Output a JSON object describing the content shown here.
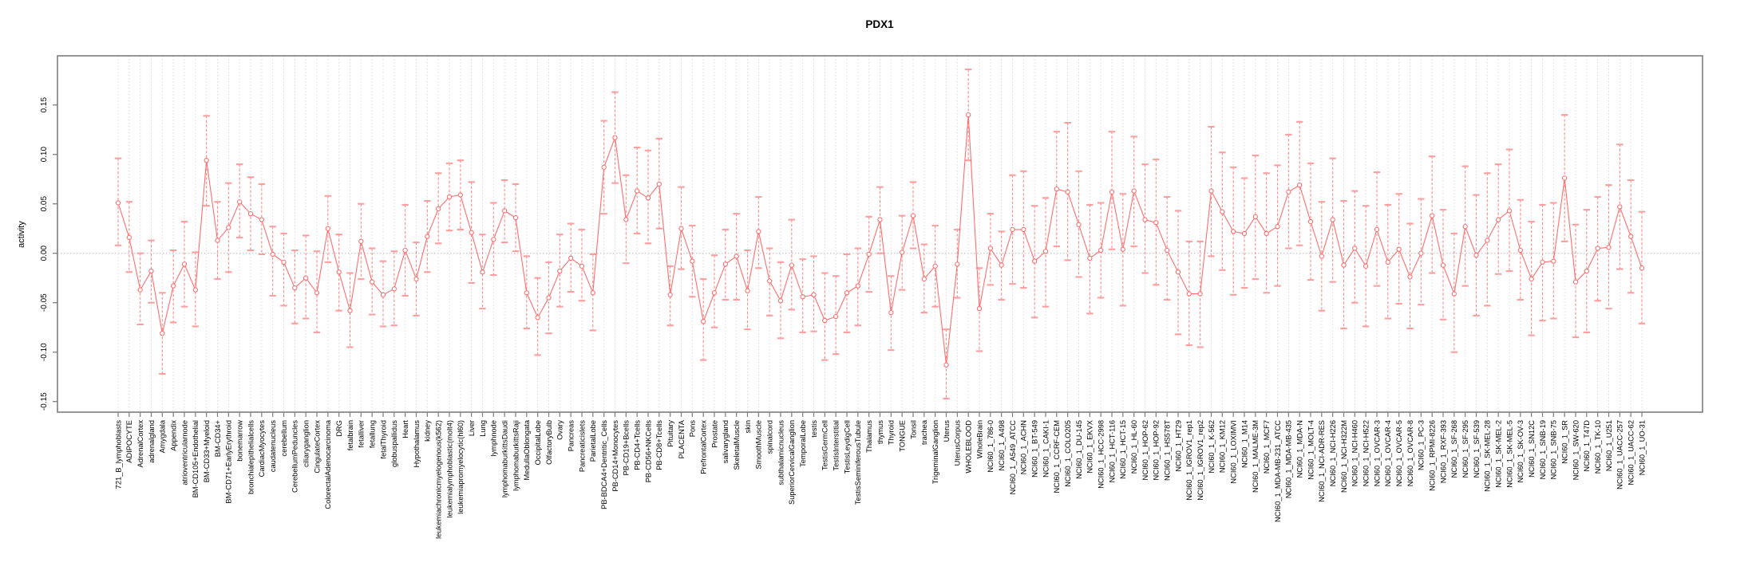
{
  "title": "PDX1",
  "ylabel": "activity",
  "chart_data": {
    "type": "line",
    "title": "PDX1",
    "xlabel": "",
    "ylabel": "activity",
    "ylim": [
      -0.16,
      0.2
    ],
    "yticks": [
      "-0.15",
      "-0.10",
      "-0.05",
      "0.00",
      "0.05",
      "0.10",
      "0.15"
    ],
    "ytick_values": [
      -0.15,
      -0.1,
      -0.05,
      0.0,
      0.05,
      0.1,
      0.15
    ],
    "grid": "vertical-dotted-per-category",
    "zero_line": true,
    "legend_position": "none",
    "point_style": "open-circle-with-error-bars",
    "categories": [
      "721_B_lymphoblasts",
      "ADIPOCYTE",
      "AdrenalCortex",
      "adrenalgland",
      "Amygdala",
      "Appendix",
      "atrioventricularnode",
      "BM-CD105+Endothelial",
      "BM-CD33+Myeloid",
      "BM-CD34+",
      "BM-CD71+EarlyErythroid",
      "bonemarrow",
      "bronchialepithelialcells",
      "CardiacMyocytes",
      "caudatenucleus",
      "cerebellum",
      "CerebellumPeduncles",
      "ciliaryganglion",
      "CingulateCortex",
      "ColorectalAdenocarcinoma",
      "DRG",
      "fetalbrain",
      "fetalliver",
      "fetallung",
      "fetalThyroid",
      "globuspallidus",
      "Heart",
      "Hypothalamus",
      "kidney",
      "leukemiachronicmyelogenous(k562)",
      "leukemialymphoblastic(molt4)",
      "leukemiapromyelocytic(hl60)",
      "Liver",
      "Lung",
      "lymphnode",
      "lymphomaburkittsDaudi",
      "lymphomaburkittsRaji",
      "MedullaOblongata",
      "OccipitalLobe",
      "OlfactoryBulb",
      "Ovary",
      "Pancreas",
      "Pancreaticislets",
      "ParietalLobe",
      "PB-BDCA4+Dentritic_Cells",
      "PB-CD14+Monocytes",
      "PB-CD19+Bcells",
      "PB-CD4+Tcells",
      "PB-CD56+NKCells",
      "PB-CD8+Tcells",
      "Pituitary",
      "PLACENTA",
      "Pons",
      "PrefrontalCortex",
      "Prostate",
      "salivarygland",
      "SkeletalMuscle",
      "skin",
      "SmoothMuscle",
      "spinalcord",
      "subthalamicnucleus",
      "SuperiorCervicalGanglion",
      "TemporalLobe",
      "testis",
      "TestisGermCell",
      "TestisInterstitial",
      "TestisLeydigCell",
      "TestisSeminiferousTubule",
      "Thalamus",
      "thymus",
      "Thyroid",
      "TONGUE",
      "Tonsil",
      "trachea",
      "TrigeminalGanglion",
      "Uterus",
      "UterusCorpus",
      "WHOLEBLOOD",
      "WholeBrain",
      "NCI60_1_786-0",
      "NCI60_1_A498",
      "NCI60_1_A549_ATCC",
      "NCI60_1_ACHN",
      "NCI60_1_BT-549",
      "NCI60_1_CAKI-1",
      "NCI60_1_CCRF-CEM",
      "NCI60_1_COLO205",
      "NCI60_1_DU-145",
      "NCI60_1_EKVX",
      "NCI60_1_HCC-2998",
      "NCI60_1_HCT-116",
      "NCI60_1_HCT-15",
      "NCI60_1_HL-60",
      "NCI60_1_HOP-62",
      "NCI60_1_HOP-92",
      "NCI60_1_HS578T",
      "NCI60_1_HT29",
      "NCI60_1_IGROV1_rep1",
      "NCI60_1_IGROV1_rep2",
      "NCI60_1_K-562",
      "NCI60_1_KM12",
      "NCI60_1_LOXIMVI",
      "NCI60_1_M14",
      "NCI60_1_MALME-3M",
      "NCI60_1_MCF7",
      "NCI60_1_MDA-MB-231_ATCC",
      "NCI60_1_MDA-MB-435",
      "NCI60_1_MDA-N",
      "NCI60_1_MOLT-4",
      "NCI60_1_NCI-ADR-RES",
      "NCI60_1_NCI-H226",
      "NCI60_1_NCI-H322M",
      "NCI60_1_NCI-H460",
      "NCI60_1_NCI-H522",
      "NCI60_1_OVCAR-3",
      "NCI60_1_OVCAR-4",
      "NCI60_1_OVCAR-5",
      "NCI60_1_OVCAR-8",
      "NCI60_1_PC-3",
      "NCI60_1_RPMI-8226",
      "NCI60_1_RXF-393",
      "NCI60_1_SF-268",
      "NCI60_1_SF-295",
      "NCI60_1_SF-539",
      "NCI60_1_SK-MEL-28",
      "NCI60_1_SK-MEL-2",
      "NCI60_1_SK-MEL-5",
      "NCI60_1_SK-OV-3",
      "NCI60_1_SN12C",
      "NCI60_1_SNB-19",
      "NCI60_1_SNB-75",
      "NCI60_1_SR",
      "NCI60_1_SW-620",
      "NCI60_1_T47D",
      "NCI60_1_TK-10",
      "NCI60_1_U251",
      "NCI60_1_UACC-257",
      "NCI60_1_UACC-62",
      "NCI60_1_UO-31"
    ],
    "series": [
      {
        "name": "activity",
        "values": [
          0.051,
          0.016,
          -0.037,
          -0.018,
          -0.081,
          -0.033,
          -0.011,
          -0.037,
          0.094,
          0.013,
          0.026,
          0.052,
          0.04,
          0.034,
          -0.001,
          -0.009,
          -0.035,
          -0.025,
          -0.04,
          0.025,
          -0.019,
          -0.058,
          0.012,
          -0.029,
          -0.042,
          -0.036,
          0.003,
          -0.026,
          0.017,
          0.045,
          0.057,
          0.059,
          0.021,
          -0.019,
          0.014,
          0.043,
          0.036,
          -0.04,
          -0.065,
          -0.045,
          -0.018,
          -0.005,
          -0.013,
          -0.04,
          0.087,
          0.117,
          0.034,
          0.063,
          0.056,
          0.07,
          -0.042,
          0.025,
          -0.008,
          -0.069,
          -0.04,
          -0.011,
          -0.003,
          -0.038,
          0.022,
          -0.028,
          -0.048,
          -0.012,
          -0.044,
          -0.042,
          -0.068,
          -0.064,
          -0.04,
          -0.033,
          -0.001,
          0.034,
          -0.06,
          0.001,
          0.038,
          -0.026,
          -0.013,
          -0.113,
          -0.011,
          0.14,
          -0.056,
          0.005,
          -0.012,
          0.024,
          0.024,
          -0.008,
          0.002,
          0.065,
          0.062,
          0.029,
          -0.005,
          0.003,
          0.062,
          0.004,
          0.063,
          0.034,
          0.031,
          0.003,
          -0.019,
          -0.041,
          -0.041,
          0.063,
          0.042,
          0.022,
          0.02,
          0.037,
          0.02,
          0.027,
          0.062,
          0.069,
          0.032,
          -0.003,
          0.034,
          -0.012,
          0.005,
          -0.013,
          0.024,
          -0.009,
          0.004,
          -0.024,
          0.0,
          0.038,
          -0.012,
          -0.041,
          0.027,
          -0.002,
          0.013,
          0.034,
          0.043,
          0.003,
          -0.026,
          -0.009,
          -0.008,
          0.076,
          -0.029,
          -0.018,
          0.005,
          0.006,
          0.047,
          0.017,
          -0.015
        ],
        "lower": [
          0.008,
          -0.019,
          -0.072,
          -0.05,
          -0.122,
          -0.07,
          -0.054,
          -0.074,
          0.048,
          -0.026,
          -0.019,
          0.016,
          0.003,
          -0.001,
          -0.043,
          -0.053,
          -0.071,
          -0.066,
          -0.08,
          -0.009,
          -0.058,
          -0.095,
          -0.026,
          -0.062,
          -0.074,
          -0.073,
          -0.043,
          -0.063,
          -0.019,
          0.01,
          0.023,
          0.024,
          -0.03,
          -0.056,
          -0.022,
          0.011,
          0.002,
          -0.076,
          -0.103,
          -0.081,
          -0.054,
          -0.039,
          -0.048,
          -0.078,
          0.04,
          0.071,
          -0.01,
          0.02,
          0.01,
          0.025,
          -0.073,
          -0.016,
          -0.044,
          -0.108,
          -0.075,
          -0.047,
          -0.047,
          -0.077,
          -0.015,
          -0.063,
          -0.086,
          -0.057,
          -0.08,
          -0.079,
          -0.108,
          -0.102,
          -0.08,
          -0.073,
          -0.039,
          0.0,
          -0.098,
          -0.037,
          0.005,
          -0.06,
          -0.054,
          -0.147,
          -0.045,
          0.094,
          -0.099,
          -0.032,
          -0.047,
          -0.031,
          -0.035,
          -0.065,
          -0.054,
          0.007,
          -0.007,
          -0.024,
          -0.061,
          -0.045,
          0.004,
          -0.053,
          0.007,
          -0.02,
          -0.032,
          -0.047,
          -0.082,
          -0.093,
          -0.095,
          -0.003,
          -0.017,
          -0.042,
          -0.035,
          -0.026,
          -0.04,
          -0.033,
          0.005,
          0.008,
          -0.027,
          -0.058,
          -0.029,
          -0.076,
          -0.05,
          -0.074,
          -0.033,
          -0.066,
          -0.051,
          -0.076,
          -0.052,
          -0.02,
          -0.067,
          -0.1,
          -0.033,
          -0.063,
          -0.053,
          -0.021,
          -0.018,
          -0.047,
          -0.083,
          -0.068,
          -0.066,
          0.012,
          -0.085,
          -0.08,
          -0.048,
          -0.056,
          -0.016,
          -0.04,
          -0.071
        ],
        "upper": [
          0.096,
          0.052,
          0.0,
          0.013,
          -0.04,
          0.003,
          0.032,
          0.001,
          0.139,
          0.052,
          0.071,
          0.09,
          0.077,
          0.07,
          0.027,
          0.02,
          0.003,
          0.018,
          0.002,
          0.058,
          0.019,
          -0.02,
          0.05,
          0.005,
          -0.008,
          0.002,
          0.049,
          0.011,
          0.053,
          0.081,
          0.091,
          0.094,
          0.072,
          0.019,
          0.051,
          0.074,
          0.07,
          -0.003,
          -0.025,
          -0.009,
          0.019,
          0.03,
          0.024,
          -0.001,
          0.134,
          0.163,
          0.079,
          0.107,
          0.104,
          0.116,
          -0.013,
          0.067,
          0.028,
          -0.026,
          -0.002,
          0.024,
          0.04,
          0.003,
          0.057,
          0.005,
          -0.009,
          0.034,
          -0.006,
          -0.003,
          -0.02,
          -0.023,
          -0.001,
          0.005,
          0.037,
          0.067,
          -0.023,
          0.038,
          0.072,
          0.009,
          0.028,
          -0.077,
          0.024,
          0.186,
          -0.015,
          0.04,
          0.022,
          0.079,
          0.083,
          0.048,
          0.056,
          0.123,
          0.132,
          0.083,
          0.049,
          0.051,
          0.123,
          0.06,
          0.118,
          0.09,
          0.095,
          0.057,
          0.043,
          0.012,
          0.012,
          0.128,
          0.102,
          0.087,
          0.076,
          0.099,
          0.081,
          0.089,
          0.12,
          0.133,
          0.091,
          0.052,
          0.096,
          0.053,
          0.063,
          0.048,
          0.082,
          0.049,
          0.06,
          0.03,
          0.055,
          0.098,
          0.044,
          0.02,
          0.088,
          0.059,
          0.081,
          0.09,
          0.105,
          0.054,
          0.032,
          0.049,
          0.051,
          0.14,
          0.029,
          0.044,
          0.057,
          0.069,
          0.11,
          0.074,
          0.042
        ]
      }
    ],
    "colors": {
      "point": "#ff6e6e",
      "line": "#ff6e6e",
      "errorbar": "#ff8a8a",
      "cap": "#ff9e9e",
      "grid": "#dcdcdc",
      "zero_line": "#b8b8b8",
      "frame": "#7d7d7d",
      "tick": "#7d7d7d",
      "text": "#000000"
    }
  }
}
